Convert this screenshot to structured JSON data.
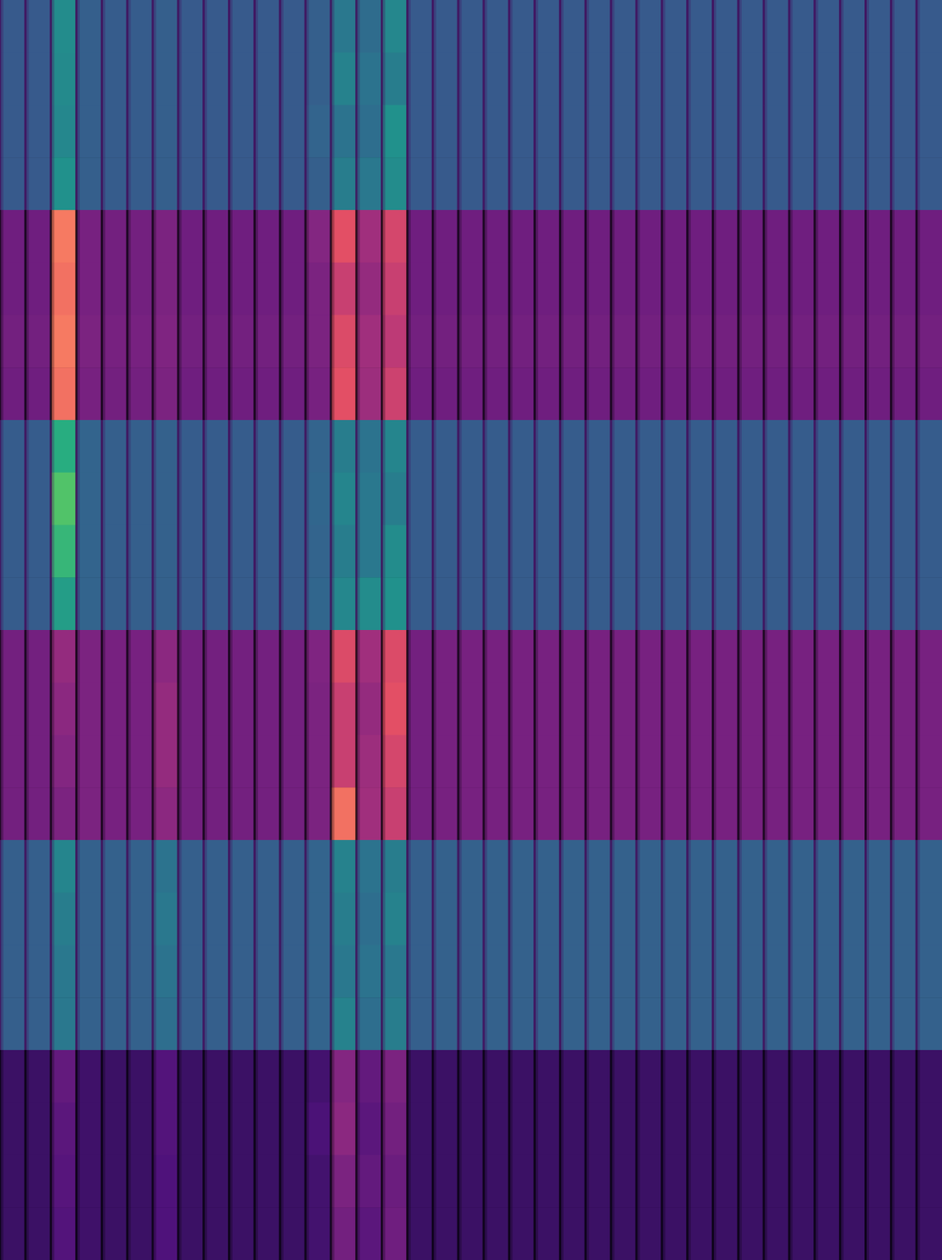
{
  "chart_data": {
    "type": "heatmap",
    "tick_labels": false,
    "color_range": [
      0,
      1
    ],
    "series": [
      {
        "color": "viridis",
        "values": [
          [
            0.28,
            0.28,
            0.48,
            0.3,
            0.29,
            0.29,
            0.3,
            0.28,
            0.28,
            0.28,
            0.28,
            0.28,
            0.3,
            0.4,
            0.35,
            0.46,
            0.28,
            0.28,
            0.28,
            0.28,
            0.28,
            0.28,
            0.28,
            0.28,
            0.28,
            0.28,
            0.28,
            0.28,
            0.28,
            0.28,
            0.28,
            0.28,
            0.28,
            0.28,
            0.28,
            0.28,
            0.28
          ],
          [
            0.28,
            0.28,
            0.47,
            0.3,
            0.29,
            0.29,
            0.3,
            0.28,
            0.28,
            0.28,
            0.28,
            0.28,
            0.3,
            0.44,
            0.38,
            0.42,
            0.28,
            0.28,
            0.28,
            0.28,
            0.28,
            0.28,
            0.28,
            0.28,
            0.28,
            0.28,
            0.28,
            0.28,
            0.28,
            0.28,
            0.28,
            0.28,
            0.28,
            0.28,
            0.28,
            0.28,
            0.28
          ],
          [
            0.28,
            0.28,
            0.46,
            0.3,
            0.29,
            0.29,
            0.3,
            0.28,
            0.28,
            0.28,
            0.28,
            0.28,
            0.32,
            0.38,
            0.36,
            0.5,
            0.28,
            0.28,
            0.28,
            0.28,
            0.28,
            0.28,
            0.28,
            0.28,
            0.28,
            0.28,
            0.28,
            0.28,
            0.28,
            0.28,
            0.28,
            0.28,
            0.28,
            0.28,
            0.28,
            0.28,
            0.28
          ],
          [
            0.28,
            0.28,
            0.5,
            0.3,
            0.29,
            0.29,
            0.3,
            0.28,
            0.28,
            0.28,
            0.28,
            0.28,
            0.3,
            0.42,
            0.4,
            0.48,
            0.28,
            0.28,
            0.28,
            0.28,
            0.28,
            0.28,
            0.28,
            0.28,
            0.28,
            0.28,
            0.28,
            0.28,
            0.28,
            0.28,
            0.28,
            0.28,
            0.28,
            0.28,
            0.28,
            0.28,
            0.28
          ]
        ]
      },
      {
        "color": "magma",
        "values": [
          [
            0.33,
            0.33,
            0.72,
            0.35,
            0.34,
            0.34,
            0.36,
            0.33,
            0.33,
            0.33,
            0.33,
            0.33,
            0.38,
            0.62,
            0.45,
            0.58,
            0.33,
            0.33,
            0.33,
            0.33,
            0.33,
            0.33,
            0.33,
            0.33,
            0.33,
            0.33,
            0.33,
            0.33,
            0.33,
            0.33,
            0.33,
            0.33,
            0.33,
            0.33,
            0.33,
            0.33,
            0.33
          ],
          [
            0.33,
            0.33,
            0.7,
            0.35,
            0.34,
            0.34,
            0.36,
            0.33,
            0.33,
            0.33,
            0.33,
            0.33,
            0.36,
            0.55,
            0.42,
            0.55,
            0.33,
            0.33,
            0.33,
            0.33,
            0.33,
            0.33,
            0.33,
            0.33,
            0.33,
            0.33,
            0.33,
            0.33,
            0.33,
            0.33,
            0.33,
            0.33,
            0.33,
            0.33,
            0.33,
            0.33,
            0.33
          ],
          [
            0.34,
            0.34,
            0.72,
            0.36,
            0.35,
            0.35,
            0.37,
            0.34,
            0.34,
            0.34,
            0.34,
            0.34,
            0.36,
            0.6,
            0.45,
            0.52,
            0.34,
            0.34,
            0.34,
            0.34,
            0.34,
            0.34,
            0.34,
            0.34,
            0.34,
            0.34,
            0.34,
            0.34,
            0.34,
            0.34,
            0.34,
            0.34,
            0.34,
            0.34,
            0.34,
            0.34,
            0.34
          ],
          [
            0.33,
            0.33,
            0.7,
            0.35,
            0.34,
            0.34,
            0.36,
            0.33,
            0.33,
            0.33,
            0.33,
            0.33,
            0.35,
            0.62,
            0.44,
            0.56,
            0.33,
            0.33,
            0.33,
            0.33,
            0.33,
            0.33,
            0.33,
            0.33,
            0.33,
            0.33,
            0.33,
            0.33,
            0.33,
            0.33,
            0.33,
            0.33,
            0.33,
            0.33,
            0.33,
            0.33,
            0.33
          ]
        ]
      },
      {
        "color": "viridis",
        "values": [
          [
            0.29,
            0.29,
            0.62,
            0.32,
            0.3,
            0.3,
            0.31,
            0.29,
            0.29,
            0.29,
            0.29,
            0.29,
            0.32,
            0.42,
            0.38,
            0.45,
            0.29,
            0.29,
            0.29,
            0.29,
            0.29,
            0.29,
            0.29,
            0.29,
            0.29,
            0.29,
            0.29,
            0.29,
            0.29,
            0.29,
            0.29,
            0.29,
            0.29,
            0.29,
            0.29,
            0.29,
            0.29
          ],
          [
            0.29,
            0.29,
            0.72,
            0.32,
            0.3,
            0.3,
            0.31,
            0.29,
            0.29,
            0.29,
            0.29,
            0.29,
            0.33,
            0.45,
            0.4,
            0.42,
            0.29,
            0.29,
            0.29,
            0.29,
            0.29,
            0.29,
            0.29,
            0.29,
            0.29,
            0.29,
            0.29,
            0.29,
            0.29,
            0.29,
            0.29,
            0.29,
            0.29,
            0.29,
            0.29,
            0.29,
            0.29
          ],
          [
            0.29,
            0.29,
            0.66,
            0.32,
            0.3,
            0.3,
            0.31,
            0.29,
            0.29,
            0.29,
            0.29,
            0.29,
            0.32,
            0.42,
            0.4,
            0.48,
            0.29,
            0.29,
            0.29,
            0.29,
            0.29,
            0.29,
            0.29,
            0.29,
            0.29,
            0.29,
            0.29,
            0.29,
            0.29,
            0.29,
            0.29,
            0.29,
            0.29,
            0.29,
            0.29,
            0.29,
            0.29
          ],
          [
            0.29,
            0.29,
            0.55,
            0.32,
            0.3,
            0.3,
            0.31,
            0.29,
            0.29,
            0.29,
            0.29,
            0.29,
            0.33,
            0.46,
            0.48,
            0.5,
            0.29,
            0.29,
            0.29,
            0.29,
            0.29,
            0.29,
            0.29,
            0.29,
            0.29,
            0.29,
            0.29,
            0.29,
            0.29,
            0.29,
            0.29,
            0.29,
            0.29,
            0.29,
            0.29,
            0.29,
            0.29
          ]
        ]
      },
      {
        "color": "magma",
        "values": [
          [
            0.34,
            0.34,
            0.42,
            0.36,
            0.35,
            0.35,
            0.4,
            0.34,
            0.34,
            0.34,
            0.34,
            0.34,
            0.37,
            0.6,
            0.45,
            0.6,
            0.34,
            0.35,
            0.35,
            0.35,
            0.35,
            0.35,
            0.35,
            0.35,
            0.35,
            0.35,
            0.35,
            0.35,
            0.35,
            0.35,
            0.35,
            0.35,
            0.35,
            0.35,
            0.35,
            0.35,
            0.35
          ],
          [
            0.34,
            0.34,
            0.4,
            0.36,
            0.35,
            0.35,
            0.42,
            0.34,
            0.34,
            0.34,
            0.34,
            0.34,
            0.36,
            0.55,
            0.42,
            0.62,
            0.34,
            0.35,
            0.35,
            0.35,
            0.35,
            0.35,
            0.35,
            0.35,
            0.35,
            0.35,
            0.35,
            0.35,
            0.35,
            0.35,
            0.35,
            0.35,
            0.35,
            0.35,
            0.35,
            0.35,
            0.35
          ],
          [
            0.34,
            0.34,
            0.38,
            0.36,
            0.35,
            0.35,
            0.42,
            0.34,
            0.34,
            0.34,
            0.34,
            0.34,
            0.36,
            0.55,
            0.44,
            0.58,
            0.34,
            0.35,
            0.35,
            0.35,
            0.35,
            0.35,
            0.35,
            0.35,
            0.35,
            0.35,
            0.35,
            0.35,
            0.35,
            0.35,
            0.35,
            0.35,
            0.35,
            0.35,
            0.35,
            0.35,
            0.35
          ],
          [
            0.34,
            0.34,
            0.36,
            0.36,
            0.35,
            0.35,
            0.4,
            0.34,
            0.34,
            0.34,
            0.34,
            0.34,
            0.36,
            0.7,
            0.45,
            0.55,
            0.34,
            0.35,
            0.35,
            0.35,
            0.35,
            0.35,
            0.35,
            0.35,
            0.35,
            0.35,
            0.35,
            0.35,
            0.35,
            0.35,
            0.35,
            0.35,
            0.35,
            0.35,
            0.35,
            0.35,
            0.35
          ]
        ]
      },
      {
        "color": "viridis",
        "values": [
          [
            0.3,
            0.3,
            0.45,
            0.31,
            0.31,
            0.31,
            0.38,
            0.3,
            0.3,
            0.3,
            0.3,
            0.3,
            0.32,
            0.44,
            0.38,
            0.42,
            0.3,
            0.31,
            0.31,
            0.31,
            0.31,
            0.31,
            0.31,
            0.31,
            0.31,
            0.31,
            0.31,
            0.31,
            0.31,
            0.31,
            0.31,
            0.31,
            0.31,
            0.31,
            0.31,
            0.31,
            0.31
          ],
          [
            0.3,
            0.3,
            0.42,
            0.31,
            0.31,
            0.31,
            0.4,
            0.3,
            0.3,
            0.3,
            0.3,
            0.3,
            0.32,
            0.42,
            0.36,
            0.44,
            0.3,
            0.31,
            0.31,
            0.31,
            0.31,
            0.31,
            0.31,
            0.31,
            0.31,
            0.31,
            0.31,
            0.31,
            0.31,
            0.31,
            0.31,
            0.31,
            0.31,
            0.31,
            0.31,
            0.31,
            0.31
          ],
          [
            0.3,
            0.3,
            0.4,
            0.31,
            0.31,
            0.31,
            0.38,
            0.3,
            0.3,
            0.3,
            0.3,
            0.3,
            0.32,
            0.4,
            0.38,
            0.4,
            0.3,
            0.31,
            0.31,
            0.31,
            0.31,
            0.31,
            0.31,
            0.31,
            0.31,
            0.31,
            0.31,
            0.31,
            0.31,
            0.31,
            0.31,
            0.31,
            0.31,
            0.31,
            0.31,
            0.31,
            0.31
          ],
          [
            0.3,
            0.3,
            0.4,
            0.31,
            0.31,
            0.31,
            0.36,
            0.3,
            0.3,
            0.3,
            0.3,
            0.3,
            0.32,
            0.44,
            0.36,
            0.42,
            0.3,
            0.31,
            0.31,
            0.31,
            0.31,
            0.31,
            0.31,
            0.31,
            0.31,
            0.31,
            0.31,
            0.31,
            0.31,
            0.31,
            0.31,
            0.31,
            0.31,
            0.31,
            0.31,
            0.31,
            0.31
          ]
        ]
      },
      {
        "color": "magma",
        "values": [
          [
            0.2,
            0.2,
            0.3,
            0.21,
            0.2,
            0.2,
            0.26,
            0.2,
            0.2,
            0.2,
            0.2,
            0.2,
            0.22,
            0.38,
            0.3,
            0.36,
            0.2,
            0.2,
            0.2,
            0.2,
            0.2,
            0.2,
            0.2,
            0.2,
            0.2,
            0.2,
            0.2,
            0.2,
            0.2,
            0.2,
            0.2,
            0.2,
            0.2,
            0.2,
            0.2,
            0.2,
            0.2
          ],
          [
            0.2,
            0.2,
            0.28,
            0.21,
            0.2,
            0.2,
            0.26,
            0.2,
            0.2,
            0.2,
            0.2,
            0.2,
            0.24,
            0.4,
            0.28,
            0.34,
            0.2,
            0.2,
            0.2,
            0.2,
            0.2,
            0.2,
            0.2,
            0.2,
            0.2,
            0.2,
            0.2,
            0.2,
            0.2,
            0.2,
            0.2,
            0.2,
            0.2,
            0.2,
            0.2,
            0.2,
            0.2
          ],
          [
            0.2,
            0.2,
            0.27,
            0.21,
            0.2,
            0.2,
            0.25,
            0.2,
            0.2,
            0.2,
            0.2,
            0.2,
            0.22,
            0.36,
            0.3,
            0.32,
            0.2,
            0.2,
            0.2,
            0.2,
            0.2,
            0.2,
            0.2,
            0.2,
            0.2,
            0.2,
            0.2,
            0.2,
            0.2,
            0.2,
            0.2,
            0.2,
            0.2,
            0.2,
            0.2,
            0.2,
            0.2
          ],
          [
            0.2,
            0.2,
            0.26,
            0.21,
            0.2,
            0.2,
            0.25,
            0.2,
            0.2,
            0.2,
            0.2,
            0.2,
            0.22,
            0.34,
            0.28,
            0.33,
            0.2,
            0.2,
            0.2,
            0.2,
            0.2,
            0.2,
            0.2,
            0.2,
            0.2,
            0.2,
            0.2,
            0.2,
            0.2,
            0.2,
            0.2,
            0.2,
            0.2,
            0.2,
            0.2,
            0.2,
            0.2
          ]
        ]
      }
    ]
  }
}
